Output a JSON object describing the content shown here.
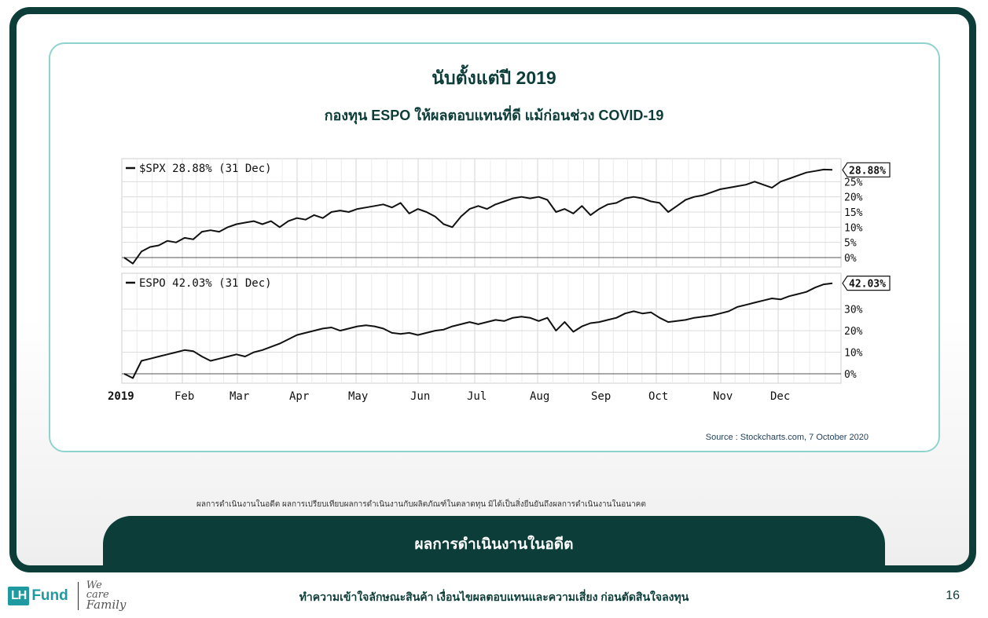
{
  "slide": {
    "title": "นับตั้งแต่ปี 2019",
    "subtitle": "กองทุน ESPO ให้ผลตอบแทนที่ดี แม้ก่อนช่วง COVID-19",
    "source": "Source : Stockcharts.com, 7 October 2020",
    "disclaimer": "ผลการดำเนินงานในอดีต ผลการเปรียบเทียบผลการดำเนินงานกับผลิตภัณฑ์ในตลาดทุน มิได้เป็นสิ่งยืนยันถึงผลการดำเนินงานในอนาคต",
    "tab_label": "ผลการดำเนินงานในอดีต",
    "footer_text": "ทำความเข้าใจลักษณะสินค้า เงื่อนไขผลตอบแทนและความเสี่ยง ก่อนตัดสินใจลงทุน",
    "page_number": "16"
  },
  "logo": {
    "box_text": "LH",
    "word": "Fund",
    "slogan_line1": "We",
    "slogan_line2": "care",
    "slogan_line3": "Family"
  },
  "colors": {
    "brand_dark": "#0c3d39",
    "brand_teal": "#1e9aa0",
    "card_border": "#8fd3cf"
  },
  "chart_data": [
    {
      "type": "line",
      "legend": "$SPX 28.88% (31 Dec)",
      "end_label": "28.88%",
      "y_ticks": [
        "0%",
        "5%",
        "10%",
        "15%",
        "20%",
        "25%"
      ],
      "ylim": [
        -3,
        30
      ],
      "x_ticks": [
        "2019",
        "Feb",
        "Mar",
        "Apr",
        "May",
        "Jun",
        "Jul",
        "Aug",
        "Sep",
        "Oct",
        "Nov",
        "Dec"
      ],
      "series": [
        {
          "values": [
            0,
            -2,
            2,
            3.5,
            4,
            5.5,
            5,
            6.5,
            6,
            8.5,
            9,
            8.5,
            10,
            11,
            11.5,
            12,
            11,
            12,
            10,
            12,
            13,
            12.5,
            14,
            13,
            15,
            15.5,
            15,
            16,
            16.5,
            17,
            17.5,
            16.5,
            18,
            14.5,
            16,
            15,
            13.5,
            11,
            10,
            13.5,
            16,
            17,
            16,
            17.5,
            18.5,
            19.5,
            20,
            19.5,
            20,
            19,
            15,
            16,
            14.5,
            17,
            14,
            16,
            17.5,
            18,
            19.5,
            20,
            19.5,
            18.5,
            18,
            15,
            17,
            19,
            20,
            20.5,
            21.5,
            22.5,
            23,
            23.5,
            24,
            25,
            24,
            23,
            25,
            26,
            27,
            28,
            28.5,
            29,
            28.88
          ]
        }
      ]
    },
    {
      "type": "line",
      "legend": "ESPO 42.03% (31 Dec)",
      "end_label": "42.03%",
      "y_ticks": [
        "0%",
        "10%",
        "20%",
        "30%"
      ],
      "ylim": [
        -2,
        43
      ],
      "x_ticks": [
        "2019",
        "Feb",
        "Mar",
        "Apr",
        "May",
        "Jun",
        "Jul",
        "Aug",
        "Sep",
        "Oct",
        "Nov",
        "Dec"
      ],
      "series": [
        {
          "values": [
            0,
            -2,
            6,
            7,
            8,
            9,
            10,
            11,
            10.5,
            8,
            6,
            7,
            8,
            9,
            8,
            10,
            11,
            12.5,
            14,
            16,
            18,
            19,
            20,
            21,
            21.5,
            20,
            21,
            22,
            22.5,
            22,
            21,
            19,
            18.5,
            19,
            18,
            19,
            20,
            20.5,
            22,
            23,
            24,
            23,
            24,
            25,
            24.5,
            26,
            26.5,
            26,
            24.5,
            26,
            20,
            24,
            19.5,
            22,
            23.5,
            24,
            25,
            26,
            28,
            29,
            28,
            28.5,
            26,
            24,
            24.5,
            25,
            26,
            26.5,
            27,
            28,
            29,
            31,
            32,
            33,
            34,
            35,
            34.5,
            36,
            37,
            38,
            40,
            41.5,
            42.03
          ]
        }
      ]
    }
  ]
}
